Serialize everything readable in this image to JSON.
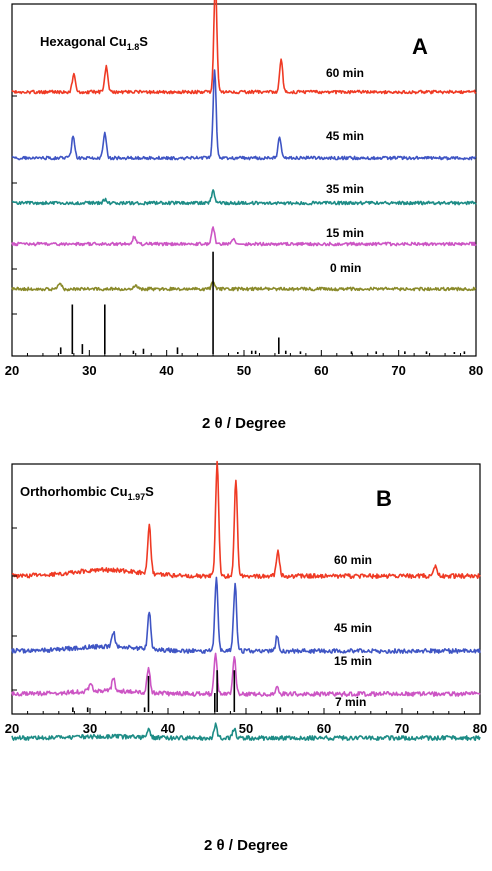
{
  "chart_data": [
    {
      "type": "line",
      "panel_label": "A",
      "title_main": "Hexagonal Cu",
      "title_sub": "1.8",
      "title_tail": "S",
      "xlabel": "2 θ / Degree",
      "xlim": [
        20,
        80
      ],
      "xticks": [
        20,
        30,
        40,
        50,
        60,
        70,
        80
      ],
      "series": [
        {
          "name": "60 min",
          "color": "#ef3a24",
          "baseline": 5,
          "peaks": [
            [
              28.0,
              0.8
            ],
            [
              32.2,
              1.1
            ],
            [
              46.3,
              4.6
            ],
            [
              54.8,
              1.4
            ]
          ]
        },
        {
          "name": "45 min",
          "color": "#3f55c4",
          "baseline": 4,
          "peaks": [
            [
              27.9,
              0.9
            ],
            [
              32.0,
              1.1
            ],
            [
              46.2,
              3.7
            ],
            [
              54.6,
              0.9
            ]
          ]
        },
        {
          "name": "35 min",
          "color": "#1d8c86",
          "baseline": 3,
          "peaks": [
            [
              32.0,
              0.15
            ],
            [
              46.0,
              0.5
            ]
          ]
        },
        {
          "name": "15 min",
          "color": "#cc55c4",
          "baseline": 2,
          "peaks": [
            [
              35.8,
              0.3
            ],
            [
              46.0,
              0.7
            ],
            [
              48.6,
              0.25
            ]
          ]
        },
        {
          "name": "0 min",
          "color": "#8a8a2a",
          "baseline": 1,
          "peaks": [
            [
              26.2,
              0.25
            ],
            [
              36.0,
              0.2
            ],
            [
              46.0,
              0.3
            ]
          ]
        }
      ],
      "reference_lines": [
        [
          26.3,
          0.1
        ],
        [
          27.8,
          0.75
        ],
        [
          29.1,
          0.15
        ],
        [
          32.0,
          0.75
        ],
        [
          35.7,
          0.05
        ],
        [
          37.0,
          0.08
        ],
        [
          41.4,
          0.1
        ],
        [
          46.0,
          1.55
        ],
        [
          49.2,
          0.03
        ],
        [
          51.0,
          0.05
        ],
        [
          51.5,
          0.05
        ],
        [
          54.5,
          0.25
        ],
        [
          55.4,
          0.05
        ],
        [
          57.3,
          0.04
        ],
        [
          63.9,
          0.04
        ],
        [
          67.1,
          0.04
        ],
        [
          70.8,
          0.04
        ],
        [
          73.6,
          0.04
        ],
        [
          77.2,
          0.03
        ],
        [
          78.5,
          0.04
        ]
      ]
    },
    {
      "type": "line",
      "panel_label": "B",
      "title_main": "Orthorhombic Cu",
      "title_sub": "1.97",
      "title_tail": "S",
      "xlabel": "2 θ / Degree",
      "xlim": [
        20,
        80
      ],
      "xticks": [
        20,
        30,
        40,
        50,
        60,
        70,
        80
      ],
      "series": [
        {
          "name": "60 min",
          "color": "#ef3a24",
          "baseline": 4,
          "peaks": [
            [
              37.6,
              1.3
            ],
            [
              46.3,
              3.1
            ],
            [
              48.7,
              2.6
            ],
            [
              54.1,
              0.7
            ],
            [
              74.3,
              0.3
            ]
          ]
        },
        {
          "name": "45 min",
          "color": "#3f55c4",
          "baseline": 3,
          "peaks": [
            [
              33.0,
              0.4
            ],
            [
              37.6,
              1.0
            ],
            [
              46.2,
              2.0
            ],
            [
              48.6,
              1.8
            ],
            [
              54.0,
              0.4
            ]
          ]
        },
        {
          "name": "15 min",
          "color": "#cc55c4",
          "baseline": 2,
          "peaks": [
            [
              30.1,
              0.25
            ],
            [
              33.0,
              0.35
            ],
            [
              37.5,
              0.7
            ],
            [
              46.1,
              1.1
            ],
            [
              48.5,
              1.0
            ],
            [
              54.0,
              0.2
            ]
          ]
        },
        {
          "name": "7 min",
          "color": "#1d8c86",
          "baseline": 1,
          "peaks": [
            [
              37.5,
              0.2
            ],
            [
              46.1,
              0.35
            ],
            [
              48.5,
              0.25
            ]
          ]
        }
      ],
      "reference_lines": [
        [
          27.8,
          0.12
        ],
        [
          29.7,
          0.12
        ],
        [
          37.0,
          0.12
        ],
        [
          37.5,
          0.95
        ],
        [
          46.0,
          0.5
        ],
        [
          46.3,
          1.1
        ],
        [
          48.5,
          1.1
        ],
        [
          54.0,
          0.12
        ],
        [
          54.4,
          0.12
        ]
      ]
    }
  ]
}
